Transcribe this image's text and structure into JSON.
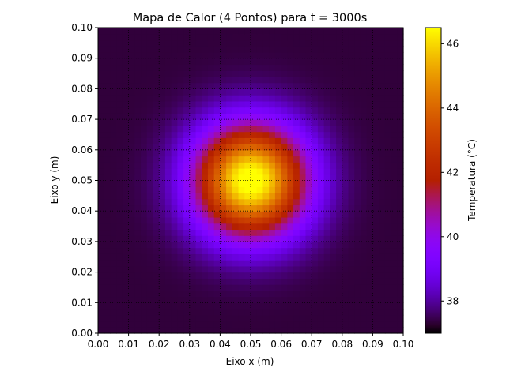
{
  "chart_data": {
    "type": "heatmap",
    "title": "Mapa de Calor (4 Pontos) para t = 3000s",
    "xlabel": "Eixo x (m)",
    "ylabel": "Eixo y (m)",
    "xlim": [
      0.0,
      0.1
    ],
    "ylim": [
      0.0,
      0.1
    ],
    "xticks": [
      "0.00",
      "0.01",
      "0.02",
      "0.03",
      "0.04",
      "0.05",
      "0.06",
      "0.07",
      "0.08",
      "0.09",
      "0.10"
    ],
    "yticks": [
      "0.00",
      "0.01",
      "0.02",
      "0.03",
      "0.04",
      "0.05",
      "0.06",
      "0.07",
      "0.08",
      "0.09",
      "0.10"
    ],
    "grid": true,
    "grid_style": "dotted",
    "colormap": "gnuplot",
    "colorbar": {
      "label": "Temperatura (°C)",
      "range": [
        37.0,
        46.5
      ],
      "ticks": [
        "38",
        "40",
        "42",
        "44",
        "46"
      ],
      "tick_values": [
        38,
        40,
        42,
        44,
        46
      ]
    },
    "grid_resolution": 50,
    "hot_points": [
      {
        "x": 0.046,
        "y": 0.054
      },
      {
        "x": 0.054,
        "y": 0.054
      },
      {
        "x": 0.046,
        "y": 0.046
      },
      {
        "x": 0.054,
        "y": 0.046
      }
    ],
    "max_temperature": 46.5,
    "ambient_temperature": 37.0
  }
}
